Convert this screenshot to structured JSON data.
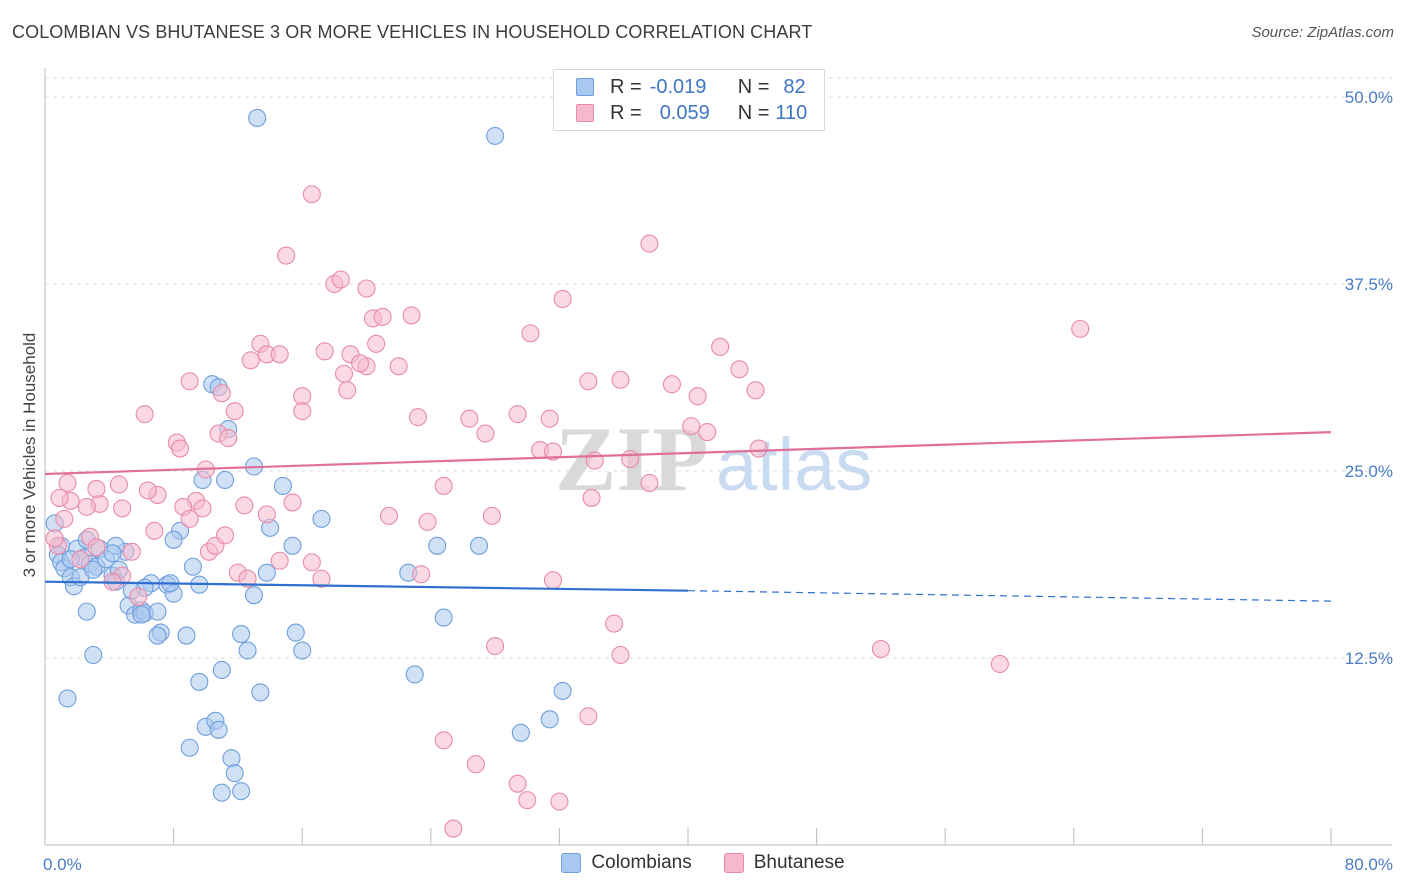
{
  "title": "COLOMBIAN VS BHUTANESE 3 OR MORE VEHICLES IN HOUSEHOLD CORRELATION CHART",
  "source": "Source: ZipAtlas.com",
  "watermark": {
    "zip": "ZIP",
    "atlas": "atlas"
  },
  "colors": {
    "colombians_fill": "#a9c8ef",
    "colombians_stroke": "#6f9fdc",
    "colombians_line": "#2f6fcf",
    "bhutanese_fill": "#f6b9cc",
    "bhutanese_stroke": "#e88ba9",
    "bhutanese_line": "#e0709a",
    "tick": "#4a7cc5",
    "grid": "#dddddd"
  },
  "legend": {
    "row1": {
      "r_label": "R =",
      "r_value": "-0.019",
      "n_label": "N =",
      "n_value": "82"
    },
    "row2": {
      "r_label": "R =",
      "r_value": "0.059",
      "n_label": "N =",
      "n_value": "110"
    }
  },
  "chart_data": {
    "type": "scatter",
    "title": "COLOMBIAN VS BHUTANESE 3 OR MORE VEHICLES IN HOUSEHOLD CORRELATION CHART",
    "xlabel": "",
    "ylabel": "3 or more Vehicles in Household",
    "xlim": [
      0,
      80
    ],
    "ylim": [
      0,
      50
    ],
    "x_tick_labels": [
      "0.0%",
      "80.0%"
    ],
    "y_ticks": [
      12.5,
      25.0,
      37.5,
      50.0
    ],
    "y_tick_labels": [
      "12.5%",
      "25.0%",
      "37.5%",
      "50.0%"
    ],
    "series": [
      {
        "name": "Colombians",
        "trend": {
          "x": [
            0,
            40
          ],
          "y": [
            17.6,
            17.0
          ],
          "dashed_x": [
            40,
            80
          ],
          "dashed_y": [
            17.0,
            16.3
          ]
        },
        "points": [
          [
            13.2,
            48.6
          ],
          [
            28.0,
            47.4
          ],
          [
            1.0,
            20.0
          ],
          [
            0.6,
            21.5
          ],
          [
            0.8,
            19.4
          ],
          [
            1.0,
            18.9
          ],
          [
            1.2,
            18.5
          ],
          [
            1.6,
            17.9
          ],
          [
            1.8,
            17.3
          ],
          [
            2.0,
            19.8
          ],
          [
            2.4,
            19.2
          ],
          [
            2.6,
            20.4
          ],
          [
            2.8,
            18.8
          ],
          [
            3.2,
            18.6
          ],
          [
            3.4,
            19.8
          ],
          [
            3.8,
            19.1
          ],
          [
            4.2,
            18.0
          ],
          [
            4.4,
            17.6
          ],
          [
            4.6,
            18.4
          ],
          [
            5.0,
            19.6
          ],
          [
            5.2,
            16.0
          ],
          [
            5.6,
            15.4
          ],
          [
            6.0,
            15.7
          ],
          [
            6.2,
            15.5
          ],
          [
            6.6,
            17.5
          ],
          [
            7.0,
            15.6
          ],
          [
            7.2,
            14.2
          ],
          [
            7.6,
            17.4
          ],
          [
            8.0,
            16.8
          ],
          [
            8.4,
            21.0
          ],
          [
            8.8,
            14.0
          ],
          [
            9.2,
            18.6
          ],
          [
            9.8,
            24.4
          ],
          [
            10.4,
            30.8
          ],
          [
            10.8,
            30.6
          ],
          [
            11.2,
            24.4
          ],
          [
            11.4,
            27.8
          ],
          [
            12.2,
            14.1
          ],
          [
            12.6,
            13.0
          ],
          [
            13.0,
            16.7
          ],
          [
            13.0,
            25.3
          ],
          [
            13.4,
            10.2
          ],
          [
            13.8,
            18.2
          ],
          [
            14.0,
            21.2
          ],
          [
            14.8,
            24.0
          ],
          [
            15.4,
            20.0
          ],
          [
            15.6,
            14.2
          ],
          [
            16.0,
            13.0
          ],
          [
            17.2,
            21.8
          ],
          [
            1.4,
            9.8
          ],
          [
            2.6,
            15.6
          ],
          [
            3.0,
            12.7
          ],
          [
            6.0,
            15.4
          ],
          [
            7.0,
            14.0
          ],
          [
            8.0,
            20.4
          ],
          [
            9.0,
            6.5
          ],
          [
            9.6,
            10.9
          ],
          [
            10.0,
            7.9
          ],
          [
            10.6,
            8.3
          ],
          [
            10.8,
            7.7
          ],
          [
            11.0,
            11.7
          ],
          [
            11.6,
            5.8
          ],
          [
            11.8,
            4.8
          ],
          [
            11.0,
            3.5
          ],
          [
            12.2,
            3.6
          ],
          [
            6.2,
            17.2
          ],
          [
            4.4,
            20.0
          ],
          [
            22.6,
            18.2
          ],
          [
            23.0,
            11.4
          ],
          [
            24.4,
            20.0
          ],
          [
            24.8,
            15.2
          ],
          [
            27.0,
            20.0
          ],
          [
            29.6,
            7.5
          ],
          [
            31.4,
            8.4
          ],
          [
            32.2,
            10.3
          ],
          [
            1.6,
            19.1
          ],
          [
            2.2,
            17.9
          ],
          [
            3.0,
            18.4
          ],
          [
            4.2,
            19.5
          ],
          [
            5.4,
            17.0
          ],
          [
            7.8,
            17.5
          ],
          [
            9.6,
            17.4
          ]
        ]
      },
      {
        "name": "Bhutanese",
        "trend": {
          "x": [
            0,
            80
          ],
          "y": [
            24.8,
            27.6
          ]
        },
        "points": [
          [
            16.6,
            43.5
          ],
          [
            37.6,
            40.2
          ],
          [
            15.0,
            39.4
          ],
          [
            18.0,
            37.5
          ],
          [
            18.4,
            37.8
          ],
          [
            20.0,
            37.2
          ],
          [
            20.4,
            35.2
          ],
          [
            21.0,
            35.3
          ],
          [
            13.4,
            33.5
          ],
          [
            12.8,
            32.4
          ],
          [
            13.8,
            32.8
          ],
          [
            14.6,
            32.8
          ],
          [
            17.4,
            33.0
          ],
          [
            19.0,
            32.8
          ],
          [
            20.0,
            32.0
          ],
          [
            20.6,
            33.5
          ],
          [
            18.6,
            31.5
          ],
          [
            19.6,
            32.2
          ],
          [
            22.0,
            32.0
          ],
          [
            22.8,
            35.4
          ],
          [
            30.2,
            34.2
          ],
          [
            32.2,
            36.5
          ],
          [
            33.8,
            31.0
          ],
          [
            35.8,
            31.1
          ],
          [
            39.0,
            30.8
          ],
          [
            40.6,
            30.0
          ],
          [
            42.0,
            33.3
          ],
          [
            43.2,
            31.8
          ],
          [
            44.2,
            30.4
          ],
          [
            40.2,
            28.0
          ],
          [
            41.2,
            27.6
          ],
          [
            44.4,
            26.5
          ],
          [
            36.4,
            25.8
          ],
          [
            37.6,
            24.2
          ],
          [
            34.2,
            25.7
          ],
          [
            30.8,
            26.4
          ],
          [
            31.6,
            26.3
          ],
          [
            26.4,
            28.5
          ],
          [
            29.4,
            28.8
          ],
          [
            31.4,
            28.5
          ],
          [
            27.4,
            27.5
          ],
          [
            18.8,
            30.4
          ],
          [
            16.0,
            30.0
          ],
          [
            16.0,
            29.0
          ],
          [
            11.0,
            30.2
          ],
          [
            11.8,
            29.0
          ],
          [
            9.0,
            31.0
          ],
          [
            10.8,
            27.5
          ],
          [
            11.4,
            27.2
          ],
          [
            10.0,
            25.1
          ],
          [
            9.4,
            23.0
          ],
          [
            8.2,
            26.9
          ],
          [
            8.4,
            26.5
          ],
          [
            6.2,
            28.8
          ],
          [
            7.0,
            23.4
          ],
          [
            6.4,
            23.7
          ],
          [
            8.6,
            22.6
          ],
          [
            9.8,
            22.5
          ],
          [
            12.4,
            22.7
          ],
          [
            13.8,
            22.1
          ],
          [
            15.4,
            22.9
          ],
          [
            23.2,
            28.6
          ],
          [
            23.8,
            21.6
          ],
          [
            24.8,
            24.0
          ],
          [
            27.8,
            22.0
          ],
          [
            34.0,
            23.2
          ],
          [
            14.6,
            19.0
          ],
          [
            16.6,
            18.9
          ],
          [
            17.2,
            17.8
          ],
          [
            12.0,
            18.2
          ],
          [
            12.6,
            17.8
          ],
          [
            9.0,
            21.8
          ],
          [
            10.2,
            19.6
          ],
          [
            10.6,
            20.0
          ],
          [
            11.2,
            20.7
          ],
          [
            6.8,
            21.0
          ],
          [
            5.4,
            19.6
          ],
          [
            4.8,
            18.0
          ],
          [
            4.2,
            17.6
          ],
          [
            5.8,
            16.6
          ],
          [
            3.4,
            22.8
          ],
          [
            2.6,
            22.6
          ],
          [
            2.8,
            20.6
          ],
          [
            3.2,
            19.9
          ],
          [
            2.2,
            19.1
          ],
          [
            1.6,
            23.0
          ],
          [
            1.4,
            24.2
          ],
          [
            1.2,
            21.8
          ],
          [
            0.8,
            20.0
          ],
          [
            0.6,
            20.5
          ],
          [
            0.9,
            23.2
          ],
          [
            3.2,
            23.8
          ],
          [
            4.6,
            24.1
          ],
          [
            4.8,
            22.5
          ],
          [
            23.4,
            18.1
          ],
          [
            31.6,
            17.7
          ],
          [
            35.4,
            14.8
          ],
          [
            35.8,
            12.7
          ],
          [
            28.0,
            13.3
          ],
          [
            26.8,
            5.4
          ],
          [
            24.8,
            7.0
          ],
          [
            29.4,
            4.1
          ],
          [
            32.0,
            2.9
          ],
          [
            33.8,
            8.6
          ],
          [
            52.0,
            13.1
          ],
          [
            59.4,
            12.1
          ],
          [
            64.4,
            34.5
          ],
          [
            25.4,
            1.1
          ],
          [
            30.0,
            3.0
          ],
          [
            21.4,
            22.0
          ]
        ]
      }
    ]
  }
}
